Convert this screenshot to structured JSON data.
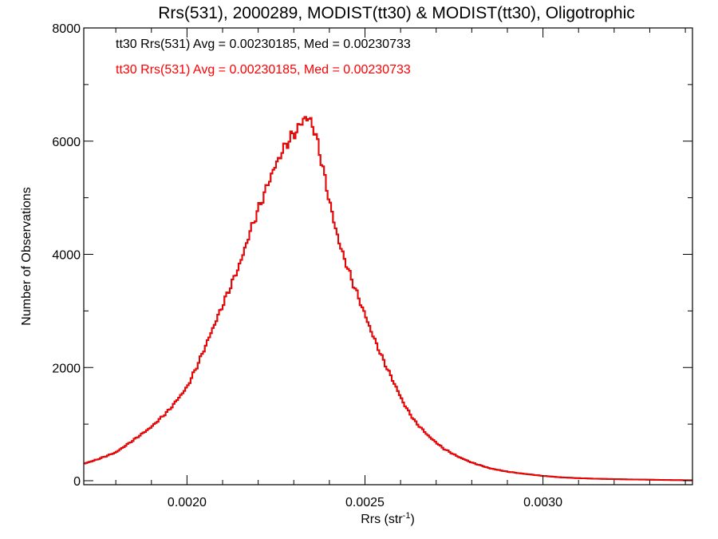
{
  "chart_data": {
    "type": "line",
    "title": "Rrs(531), 2000289, MODIST(tt30) & MODIST(tt30), Oligotrophic",
    "xlabel": "Rrs (str",
    "xlabel_superscript": "-1",
    "xlabel_close": ")",
    "ylabel": "Number of Observations",
    "xlim": [
      0.00171,
      0.00342
    ],
    "ylim": [
      0,
      8000
    ],
    "x_ticks": [
      0.002,
      0.0025,
      0.003
    ],
    "x_tick_labels": [
      "0.0020",
      "0.0025",
      "0.0030"
    ],
    "y_ticks": [
      0,
      2000,
      4000,
      6000,
      8000
    ],
    "y_tick_labels": [
      "0",
      "2000",
      "4000",
      "6000",
      "8000"
    ],
    "grid": false,
    "legend_placement": "top-left",
    "series": [
      {
        "name": "tt30 Rrs(531) Avg = 0.00230185, Med = 0.00230733",
        "color": "#000000",
        "x": [
          0.00171,
          0.00175,
          0.0018,
          0.00185,
          0.0019,
          0.00195,
          0.002,
          0.00203,
          0.00206,
          0.00209,
          0.00212,
          0.00215,
          0.00218,
          0.00221,
          0.00224,
          0.00227,
          0.00229,
          0.00231,
          0.00233,
          0.00235,
          0.00237,
          0.00239,
          0.00241,
          0.00243,
          0.00246,
          0.00249,
          0.00252,
          0.00255,
          0.00258,
          0.00261,
          0.00264,
          0.00268,
          0.00272,
          0.00276,
          0.0028,
          0.00285,
          0.0029,
          0.00295,
          0.003,
          0.00305,
          0.0031,
          0.00315,
          0.0032,
          0.00325,
          0.0033,
          0.00335,
          0.00342
        ],
        "values": [
          300,
          380,
          500,
          720,
          950,
          1250,
          1650,
          2050,
          2500,
          2950,
          3400,
          3850,
          4450,
          4950,
          5450,
          5850,
          6050,
          6200,
          6420,
          6350,
          5900,
          5250,
          4650,
          4150,
          3600,
          3100,
          2600,
          2150,
          1750,
          1350,
          1050,
          780,
          570,
          430,
          320,
          220,
          160,
          120,
          85,
          60,
          45,
          35,
          28,
          22,
          18,
          12,
          8
        ]
      },
      {
        "name": "tt30 Rrs(531) Avg = 0.00230185, Med = 0.00230733",
        "color": "#ff0000",
        "x": [
          0.00171,
          0.00175,
          0.0018,
          0.00185,
          0.0019,
          0.00195,
          0.002,
          0.00203,
          0.00206,
          0.00209,
          0.00212,
          0.00215,
          0.00218,
          0.00221,
          0.00224,
          0.00227,
          0.00229,
          0.00231,
          0.00233,
          0.00235,
          0.00237,
          0.00239,
          0.00241,
          0.00243,
          0.00246,
          0.00249,
          0.00252,
          0.00255,
          0.00258,
          0.00261,
          0.00264,
          0.00268,
          0.00272,
          0.00276,
          0.0028,
          0.00285,
          0.0029,
          0.00295,
          0.003,
          0.00305,
          0.0031,
          0.00315,
          0.0032,
          0.00325,
          0.0033,
          0.00335,
          0.00342
        ],
        "values": [
          300,
          380,
          500,
          720,
          950,
          1250,
          1650,
          2050,
          2500,
          2950,
          3400,
          3850,
          4450,
          4950,
          5450,
          5850,
          6050,
          6200,
          6420,
          6350,
          5900,
          5250,
          4650,
          4150,
          3600,
          3100,
          2600,
          2150,
          1750,
          1350,
          1050,
          780,
          570,
          430,
          320,
          220,
          160,
          120,
          85,
          60,
          45,
          35,
          28,
          22,
          18,
          12,
          8
        ]
      }
    ]
  }
}
